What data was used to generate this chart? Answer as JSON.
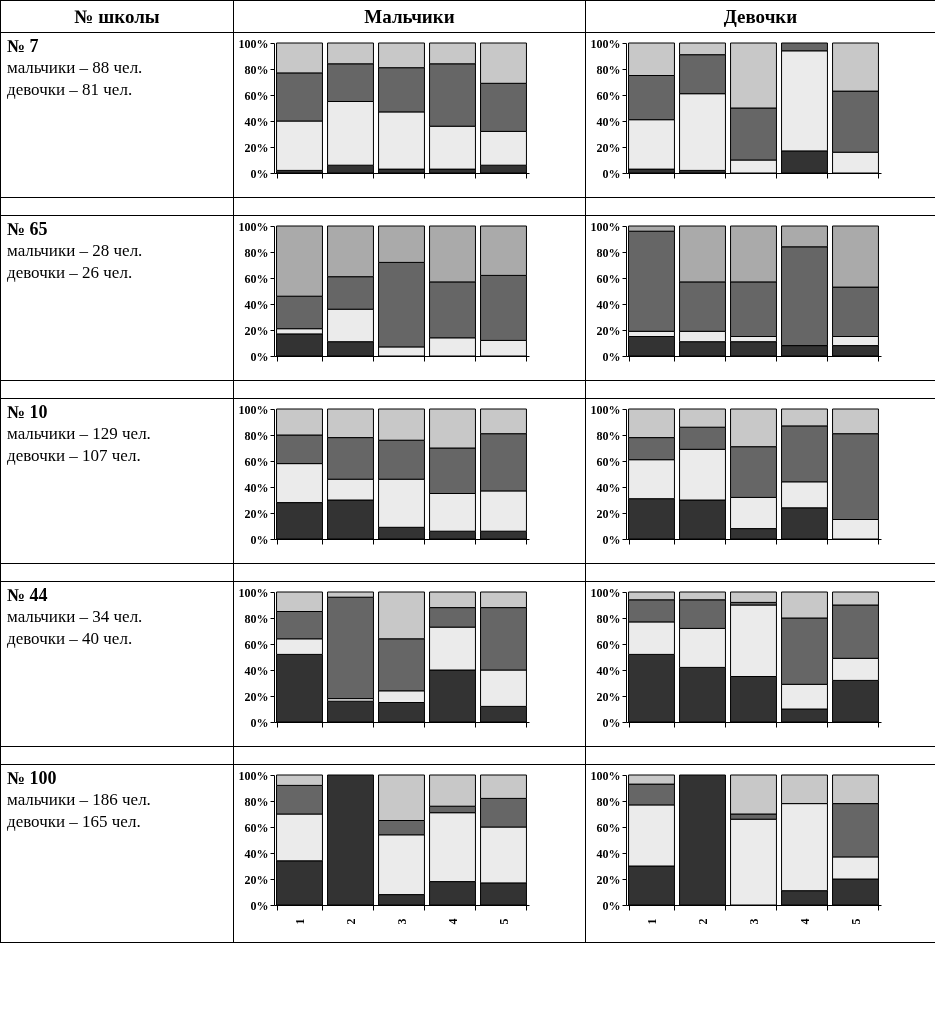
{
  "chart_data": [
    {
      "type": "other",
      "annotations": [
        "№ школы",
        "Мальчики",
        "Девочки"
      ]
    },
    {
      "type": "other",
      "title": "№ 7",
      "annotations": [
        "мальчики – 88 чел.",
        "девочки – 81 чел."
      ]
    },
    {
      "type": "bar",
      "stacked": true,
      "tick_labels": "y",
      "categories": [
        null,
        null,
        null,
        null,
        null
      ],
      "ylim": [
        0,
        100
      ],
      "yticks": [
        {
          "value": 0,
          "label": "0%"
        },
        {
          "value": 20,
          "label": "20%"
        },
        {
          "value": 40,
          "label": "40%"
        },
        {
          "value": 60,
          "label": "60%"
        },
        {
          "value": 80,
          "label": "80%"
        },
        {
          "value": 100,
          "label": "100%"
        }
      ],
      "series": [
        {
          "color": "#333333",
          "values": [
            2,
            6,
            3,
            3,
            6
          ]
        },
        {
          "color": "#ebebeb",
          "values": [
            38,
            49,
            44,
            33,
            26
          ]
        },
        {
          "color": "#666666",
          "values": [
            37,
            29,
            34,
            48,
            37
          ]
        },
        {
          "color": "#c8c8c8",
          "values": [
            23,
            16,
            19,
            16,
            31
          ]
        }
      ]
    },
    {
      "type": "bar",
      "stacked": true,
      "tick_labels": "y",
      "categories": [
        null,
        null,
        null,
        null,
        null
      ],
      "ylim": [
        0,
        100
      ],
      "yticks": [
        {
          "value": 0,
          "label": "0%"
        },
        {
          "value": 20,
          "label": "20%"
        },
        {
          "value": 40,
          "label": "40%"
        },
        {
          "value": 60,
          "label": "60%"
        },
        {
          "value": 80,
          "label": "80%"
        },
        {
          "value": 100,
          "label": "100%"
        }
      ],
      "series": [
        {
          "color": "#333333",
          "values": [
            3,
            2,
            0,
            17,
            0
          ]
        },
        {
          "color": "#ebebeb",
          "values": [
            38,
            59,
            10,
            77,
            16
          ]
        },
        {
          "color": "#666666",
          "values": [
            34,
            30,
            40,
            6,
            47
          ]
        },
        {
          "color": "#c8c8c8",
          "values": [
            25,
            9,
            50,
            0,
            37
          ]
        }
      ]
    },
    {
      "type": "other",
      "title": "№ 65",
      "annotations": [
        "мальчики – 28 чел.",
        "девочки – 26 чел."
      ]
    },
    {
      "type": "bar",
      "stacked": true,
      "tick_labels": "y",
      "categories": [
        null,
        null,
        null,
        null,
        null
      ],
      "ylim": [
        0,
        100
      ],
      "yticks": [
        {
          "value": 0,
          "label": "0%"
        },
        {
          "value": 20,
          "label": "20%"
        },
        {
          "value": 40,
          "label": "40%"
        },
        {
          "value": 60,
          "label": "60%"
        },
        {
          "value": 80,
          "label": "80%"
        },
        {
          "value": 100,
          "label": "100%"
        }
      ],
      "series": [
        {
          "color": "#333333",
          "values": [
            17,
            11,
            0,
            0,
            0
          ]
        },
        {
          "color": "#ebebeb",
          "values": [
            4,
            25,
            7,
            14,
            12
          ]
        },
        {
          "color": "#666666",
          "values": [
            25,
            25,
            65,
            43,
            50
          ]
        },
        {
          "color": "#aaaaaa",
          "values": [
            54,
            39,
            28,
            43,
            38
          ]
        }
      ]
    },
    {
      "type": "bar",
      "stacked": true,
      "tick_labels": "y",
      "categories": [
        null,
        null,
        null,
        null,
        null
      ],
      "ylim": [
        0,
        100
      ],
      "yticks": [
        {
          "value": 0,
          "label": "0%"
        },
        {
          "value": 20,
          "label": "20%"
        },
        {
          "value": 40,
          "label": "40%"
        },
        {
          "value": 60,
          "label": "60%"
        },
        {
          "value": 80,
          "label": "80%"
        },
        {
          "value": 100,
          "label": "100%"
        }
      ],
      "series": [
        {
          "color": "#333333",
          "values": [
            15,
            11,
            11,
            8,
            8
          ]
        },
        {
          "color": "#ebebeb",
          "values": [
            4,
            8,
            4,
            0,
            7
          ]
        },
        {
          "color": "#666666",
          "values": [
            77,
            38,
            42,
            76,
            38
          ]
        },
        {
          "color": "#aaaaaa",
          "values": [
            4,
            43,
            43,
            16,
            47
          ]
        }
      ]
    },
    {
      "type": "other",
      "title": "№ 10",
      "annotations": [
        "мальчики – 129 чел.",
        "девочки – 107 чел."
      ]
    },
    {
      "type": "bar",
      "stacked": true,
      "tick_labels": "y",
      "categories": [
        null,
        null,
        null,
        null,
        null
      ],
      "ylim": [
        0,
        100
      ],
      "yticks": [
        {
          "value": 0,
          "label": "0%"
        },
        {
          "value": 20,
          "label": "20%"
        },
        {
          "value": 40,
          "label": "40%"
        },
        {
          "value": 60,
          "label": "60%"
        },
        {
          "value": 80,
          "label": "80%"
        },
        {
          "value": 100,
          "label": "100%"
        }
      ],
      "series": [
        {
          "color": "#333333",
          "values": [
            28,
            30,
            9,
            6,
            6
          ]
        },
        {
          "color": "#ebebeb",
          "values": [
            30,
            16,
            37,
            29,
            31
          ]
        },
        {
          "color": "#666666",
          "values": [
            22,
            32,
            30,
            35,
            44
          ]
        },
        {
          "color": "#c8c8c8",
          "values": [
            20,
            22,
            24,
            30,
            19
          ]
        }
      ]
    },
    {
      "type": "bar",
      "stacked": true,
      "tick_labels": "y",
      "categories": [
        null,
        null,
        null,
        null,
        null
      ],
      "ylim": [
        0,
        100
      ],
      "yticks": [
        {
          "value": 0,
          "label": "0%"
        },
        {
          "value": 20,
          "label": "20%"
        },
        {
          "value": 40,
          "label": "40%"
        },
        {
          "value": 60,
          "label": "60%"
        },
        {
          "value": 80,
          "label": "80%"
        },
        {
          "value": 100,
          "label": "100%"
        }
      ],
      "series": [
        {
          "color": "#333333",
          "values": [
            31,
            30,
            8,
            24,
            0
          ]
        },
        {
          "color": "#ebebeb",
          "values": [
            30,
            39,
            24,
            20,
            15
          ]
        },
        {
          "color": "#666666",
          "values": [
            17,
            17,
            39,
            43,
            66
          ]
        },
        {
          "color": "#c8c8c8",
          "values": [
            22,
            14,
            29,
            13,
            19
          ]
        }
      ]
    },
    {
      "type": "other",
      "title": "№ 44",
      "annotations": [
        "мальчики – 34 чел.",
        "девочки – 40 чел."
      ]
    },
    {
      "type": "bar",
      "stacked": true,
      "tick_labels": "y",
      "categories": [
        null,
        null,
        null,
        null,
        null
      ],
      "ylim": [
        0,
        100
      ],
      "yticks": [
        {
          "value": 0,
          "label": "0%"
        },
        {
          "value": 20,
          "label": "20%"
        },
        {
          "value": 40,
          "label": "40%"
        },
        {
          "value": 60,
          "label": "60%"
        },
        {
          "value": 80,
          "label": "80%"
        },
        {
          "value": 100,
          "label": "100%"
        }
      ],
      "series": [
        {
          "color": "#333333",
          "values": [
            52,
            16,
            15,
            40,
            12
          ]
        },
        {
          "color": "#ebebeb",
          "values": [
            12,
            2,
            9,
            33,
            28
          ]
        },
        {
          "color": "#666666",
          "values": [
            21,
            78,
            40,
            15,
            48
          ]
        },
        {
          "color": "#c8c8c8",
          "values": [
            15,
            4,
            36,
            12,
            12
          ]
        }
      ]
    },
    {
      "type": "bar",
      "stacked": true,
      "tick_labels": "y",
      "categories": [
        null,
        null,
        null,
        null,
        null
      ],
      "ylim": [
        0,
        100
      ],
      "yticks": [
        {
          "value": 0,
          "label": "0%"
        },
        {
          "value": 20,
          "label": "20%"
        },
        {
          "value": 40,
          "label": "40%"
        },
        {
          "value": 60,
          "label": "60%"
        },
        {
          "value": 80,
          "label": "80%"
        },
        {
          "value": 100,
          "label": "100%"
        }
      ],
      "series": [
        {
          "color": "#333333",
          "values": [
            52,
            42,
            35,
            10,
            32
          ]
        },
        {
          "color": "#ebebeb",
          "values": [
            25,
            30,
            55,
            19,
            17
          ]
        },
        {
          "color": "#666666",
          "values": [
            17,
            22,
            2,
            51,
            41
          ]
        },
        {
          "color": "#c8c8c8",
          "values": [
            6,
            6,
            8,
            20,
            10
          ]
        }
      ]
    },
    {
      "type": "other",
      "title": "№ 100",
      "annotations": [
        "мальчики – 186 чел.",
        "девочки – 165 чел."
      ]
    },
    {
      "type": "bar",
      "stacked": true,
      "categories": [
        "1",
        "2",
        "3",
        "4",
        "5"
      ],
      "ylim": [
        0,
        100
      ],
      "yticks": [
        {
          "value": 0,
          "label": "0%"
        },
        {
          "value": 20,
          "label": "20%"
        },
        {
          "value": 40,
          "label": "40%"
        },
        {
          "value": 60,
          "label": "60%"
        },
        {
          "value": 80,
          "label": "80%"
        },
        {
          "value": 100,
          "label": "100%"
        }
      ],
      "series": [
        {
          "color": "#333333",
          "values": [
            34,
            100,
            8,
            18,
            17
          ]
        },
        {
          "color": "#ebebeb",
          "values": [
            36,
            0,
            46,
            53,
            43
          ]
        },
        {
          "color": "#666666",
          "values": [
            22,
            0,
            11,
            5,
            22
          ]
        },
        {
          "color": "#c8c8c8",
          "values": [
            8,
            0,
            35,
            24,
            18
          ]
        }
      ]
    },
    {
      "type": "bar",
      "stacked": true,
      "categories": [
        "1",
        "2",
        "3",
        "4",
        "5"
      ],
      "ylim": [
        0,
        100
      ],
      "yticks": [
        {
          "value": 0,
          "label": "0%"
        },
        {
          "value": 20,
          "label": "20%"
        },
        {
          "value": 40,
          "label": "40%"
        },
        {
          "value": 60,
          "label": "60%"
        },
        {
          "value": 80,
          "label": "80%"
        },
        {
          "value": 100,
          "label": "100%"
        }
      ],
      "series": [
        {
          "color": "#333333",
          "values": [
            30,
            100,
            0,
            11,
            20
          ]
        },
        {
          "color": "#ebebeb",
          "values": [
            47,
            0,
            66,
            67,
            17
          ]
        },
        {
          "color": "#666666",
          "values": [
            16,
            0,
            4,
            0,
            41
          ]
        },
        {
          "color": "#c8c8c8",
          "values": [
            7,
            0,
            30,
            22,
            22
          ]
        }
      ]
    }
  ]
}
